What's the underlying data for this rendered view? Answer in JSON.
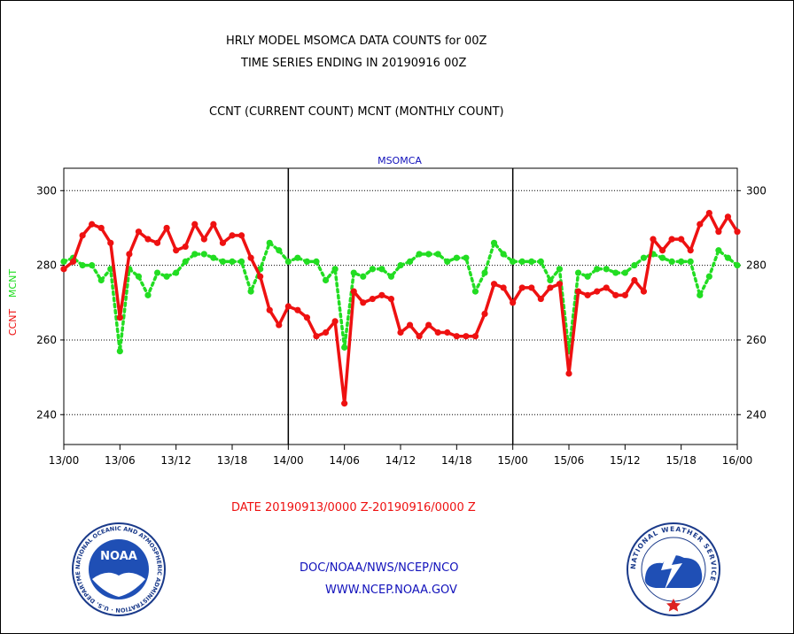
{
  "header": {
    "line1": "HRLY MODEL MSOMCA DATA COUNTS for 00Z",
    "line2": "TIME SERIES ENDING IN 20190916 00Z",
    "line3": "CCNT (CURRENT COUNT) MCNT (MONTHLY COUNT)"
  },
  "footer": {
    "date_range": "DATE 20190913/0000 Z-20190916/0000 Z",
    "agency": "DOC/NOAA/NWS/NCEP/NCO",
    "url": "WWW.NCEP.NOAA.GOV"
  },
  "logos": {
    "noaa_text": "NOAA",
    "noaa_ring_text": "NATIONAL OCEANIC AND ATMOSPHERIC ADMINISTRATION · U.S. DEPARTMENT OF COMMERCE",
    "nws_ring_text": "NATIONAL WEATHER SERVICE"
  },
  "colors": {
    "ccnt": "#ee1111",
    "mcnt": "#22dd22",
    "title_blue": "#1111bb",
    "date_red": "#ee1111"
  },
  "chart_data": {
    "type": "line",
    "title": "MSOMCA",
    "ylabel_ccnt": "CCNT",
    "ylabel_mcnt": "MCNT",
    "ylim": [
      232,
      306
    ],
    "yticks": [
      240,
      260,
      280,
      300
    ],
    "xlim": [
      0,
      72
    ],
    "xticks": [
      {
        "x": 0,
        "label": "13/00"
      },
      {
        "x": 6,
        "label": "13/06"
      },
      {
        "x": 12,
        "label": "13/12"
      },
      {
        "x": 18,
        "label": "13/18"
      },
      {
        "x": 24,
        "label": "14/00"
      },
      {
        "x": 30,
        "label": "14/06"
      },
      {
        "x": 36,
        "label": "14/12"
      },
      {
        "x": 42,
        "label": "14/18"
      },
      {
        "x": 48,
        "label": "15/00"
      },
      {
        "x": 54,
        "label": "15/06"
      },
      {
        "x": 60,
        "label": "15/12"
      },
      {
        "x": 66,
        "label": "15/18"
      },
      {
        "x": 72,
        "label": "16/00"
      }
    ],
    "day_dividers": [
      24,
      48
    ],
    "grid": true,
    "series": [
      {
        "name": "CCNT",
        "color": "#ee1111",
        "style": "solid",
        "values": [
          279,
          281,
          288,
          291,
          290,
          286,
          266,
          283,
          289,
          287,
          286,
          290,
          284,
          285,
          291,
          287,
          291,
          286,
          288,
          288,
          282,
          277,
          268,
          264,
          269,
          268,
          266,
          261,
          262,
          265,
          243,
          273,
          270,
          271,
          272,
          271,
          262,
          264,
          261,
          264,
          262,
          262,
          261,
          261,
          261,
          267,
          275,
          274,
          270,
          274,
          274,
          271,
          274,
          275,
          251,
          273,
          272,
          273,
          274,
          272,
          272,
          276,
          273,
          287,
          284,
          287,
          287,
          284,
          291,
          294,
          289,
          293,
          289
        ]
      },
      {
        "name": "MCNT",
        "color": "#22dd22",
        "style": "dotted",
        "values": [
          281,
          282,
          280,
          280,
          276,
          279,
          257,
          279,
          277,
          272,
          278,
          277,
          278,
          281,
          283,
          283,
          282,
          281,
          281,
          281,
          273,
          279,
          286,
          284,
          281,
          282,
          281,
          281,
          276,
          279,
          258,
          278,
          277,
          279,
          279,
          277,
          280,
          281,
          283,
          283,
          283,
          281,
          282,
          282,
          273,
          278,
          286,
          283,
          281,
          281,
          281,
          281,
          276,
          279,
          257,
          278,
          277,
          279,
          279,
          278,
          278,
          280,
          282,
          283,
          282,
          281,
          281,
          281,
          272,
          277,
          284,
          282,
          280
        ]
      }
    ]
  }
}
